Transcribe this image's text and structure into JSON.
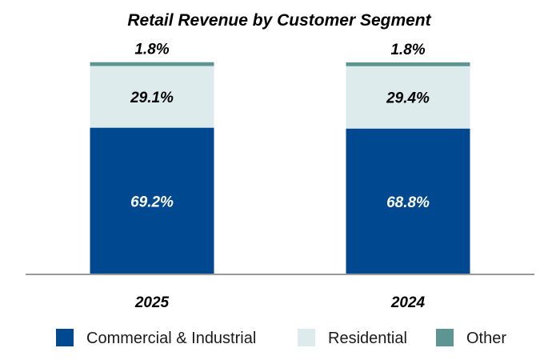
{
  "chart_data": {
    "type": "bar",
    "stacked": true,
    "title": "Retail Revenue by Customer Segment",
    "categories": [
      "2025",
      "2024"
    ],
    "unit": "%",
    "series": [
      {
        "name": "Commercial & Industrial",
        "values": [
          69.2,
          68.8
        ],
        "labels": [
          "69.2%",
          "68.8%"
        ],
        "color": "#004990",
        "label_color": "#ffffff"
      },
      {
        "name": "Residential",
        "values": [
          29.1,
          29.4
        ],
        "labels": [
          "29.1%",
          "29.4%"
        ],
        "color": "#deebec",
        "label_color": "#000000"
      },
      {
        "name": "Other",
        "values": [
          1.8,
          1.8
        ],
        "labels": [
          "1.8%",
          "1.8%"
        ],
        "color": "#5c9591",
        "label_color": "#000000"
      }
    ],
    "ylim": [
      0,
      100
    ],
    "grid": false,
    "legend_position": "bottom",
    "axis_color": "#999999"
  }
}
